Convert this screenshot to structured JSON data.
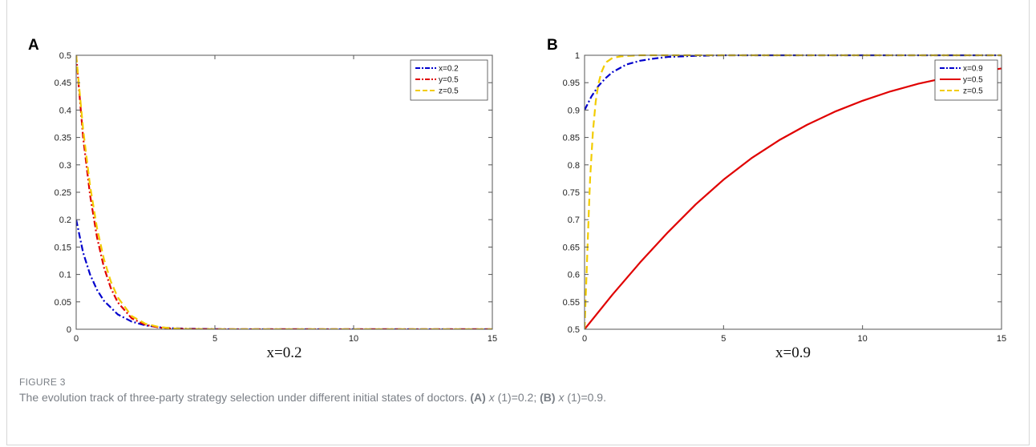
{
  "figure": {
    "label": "FIGURE 3",
    "caption_main": "The evolution track of three-party strategy selection under different initial states of doctors.",
    "caption_a_tag": "(A)",
    "caption_a_var": "x",
    "caption_a_text": " (1)=0.2; ",
    "caption_b_tag": "(B)",
    "caption_b_var": "x",
    "caption_b_text": " (1)=0.9."
  },
  "chart_data": [
    {
      "panel": "A",
      "type": "line",
      "xlabel": "x=0.2",
      "ylabel": "",
      "xlim": [
        0,
        15
      ],
      "ylim": [
        0,
        0.5
      ],
      "xticks": [
        0,
        5,
        10,
        15
      ],
      "yticks": [
        0,
        0.05,
        0.1,
        0.15,
        0.2,
        0.25,
        0.3,
        0.35,
        0.4,
        0.45,
        0.5
      ],
      "grid": false,
      "legend_position": "top-right",
      "series": [
        {
          "name": "x=0.2",
          "color": "#0000cc",
          "style": "dash-dot",
          "x": [
            0,
            0.25,
            0.5,
            0.75,
            1,
            1.5,
            2,
            2.5,
            3,
            3.5,
            4,
            5,
            6,
            8,
            10,
            15
          ],
          "y": [
            0.2,
            0.14,
            0.1,
            0.072,
            0.052,
            0.027,
            0.014,
            0.007,
            0.0035,
            0.0018,
            0.001,
            0.0002,
            0,
            0,
            0,
            0
          ]
        },
        {
          "name": "y=0.5",
          "color": "#e00000",
          "style": "dash-dot",
          "x": [
            0,
            0.25,
            0.5,
            0.75,
            1,
            1.25,
            1.5,
            2,
            2.5,
            3,
            3.5,
            4,
            5,
            6,
            8,
            10,
            15
          ],
          "y": [
            0.5,
            0.35,
            0.245,
            0.168,
            0.113,
            0.075,
            0.049,
            0.02,
            0.008,
            0.003,
            0.001,
            0.0004,
            0,
            0,
            0,
            0,
            0
          ]
        },
        {
          "name": "z=0.5",
          "color": "#f2cc00",
          "style": "dashed",
          "x": [
            0,
            0.25,
            0.5,
            0.75,
            1,
            1.25,
            1.5,
            2,
            2.5,
            3,
            3.5,
            4,
            5,
            6,
            8,
            10,
            15
          ],
          "y": [
            0.5,
            0.365,
            0.262,
            0.185,
            0.128,
            0.087,
            0.058,
            0.024,
            0.01,
            0.004,
            0.0015,
            0.0005,
            0,
            0,
            0,
            0,
            0
          ]
        }
      ]
    },
    {
      "panel": "B",
      "type": "line",
      "xlabel": "x=0.9",
      "ylabel": "",
      "xlim": [
        0,
        15
      ],
      "ylim": [
        0.5,
        1
      ],
      "xticks": [
        0,
        5,
        10,
        15
      ],
      "yticks": [
        0.5,
        0.55,
        0.6,
        0.65,
        0.7,
        0.75,
        0.8,
        0.85,
        0.9,
        0.95,
        1
      ],
      "grid": false,
      "legend_position": "top-right",
      "series": [
        {
          "name": "x=0.9",
          "color": "#0000cc",
          "style": "dash-dot",
          "x": [
            0,
            0.25,
            0.5,
            0.75,
            1,
            1.5,
            2,
            2.5,
            3,
            3.5,
            4,
            5,
            6,
            8,
            10,
            15
          ],
          "y": [
            0.9,
            0.925,
            0.944,
            0.958,
            0.969,
            0.983,
            0.99,
            0.994,
            0.997,
            0.998,
            0.999,
            1,
            1,
            1,
            1,
            1
          ]
        },
        {
          "name": "y=0.5",
          "color": "#e00000",
          "style": "solid",
          "x": [
            0,
            1,
            2,
            3,
            4,
            5,
            6,
            7,
            8,
            9,
            10,
            11,
            12,
            13,
            14,
            15
          ],
          "y": [
            0.5,
            0.563,
            0.622,
            0.677,
            0.728,
            0.773,
            0.812,
            0.845,
            0.873,
            0.897,
            0.917,
            0.934,
            0.948,
            0.959,
            0.968,
            0.976
          ]
        },
        {
          "name": "z=0.5",
          "color": "#f2cc00",
          "style": "dashed",
          "x": [
            0,
            0.05,
            0.1,
            0.15,
            0.2,
            0.3,
            0.4,
            0.5,
            0.6,
            0.7,
            0.8,
            1,
            1.3,
            1.6,
            2,
            3,
            5,
            15
          ],
          "y": [
            0.5,
            0.57,
            0.64,
            0.71,
            0.775,
            0.86,
            0.915,
            0.948,
            0.968,
            0.98,
            0.988,
            0.995,
            0.998,
            0.999,
            1,
            1,
            1,
            1
          ]
        }
      ]
    }
  ]
}
